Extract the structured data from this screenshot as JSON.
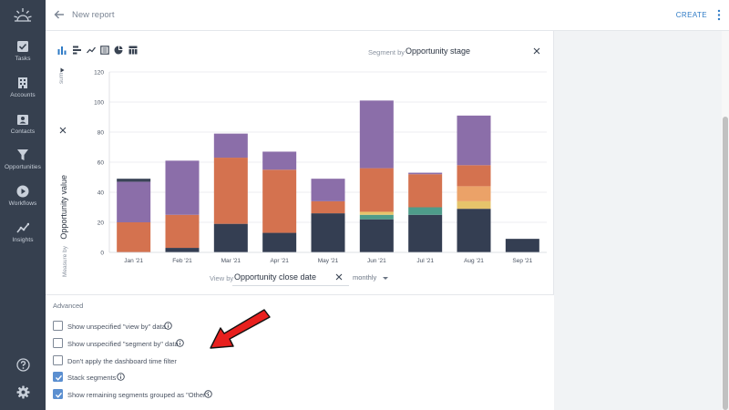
{
  "header": {
    "title": "New report",
    "create_label": "CREATE"
  },
  "sidebar": {
    "items": [
      {
        "label": "Tasks",
        "icon": "checkbox-icon"
      },
      {
        "label": "Accounts",
        "icon": "building-icon"
      },
      {
        "label": "Contacts",
        "icon": "contact-card-icon"
      },
      {
        "label": "Opportunities",
        "icon": "funnel-icon"
      },
      {
        "label": "Workflows",
        "icon": "play-circle-icon"
      },
      {
        "label": "Insights",
        "icon": "trend-line-icon"
      }
    ],
    "bottom": [
      "help-icon",
      "settings-gear-icon"
    ]
  },
  "chart_controls": {
    "segment_label": "Segment by",
    "segment_value": "Opportunity stage",
    "sum_label": "sum",
    "measure_label": "Measure by",
    "measure_value": "Opportunity value",
    "viewby_label": "View by",
    "viewby_value": "Opportunity close date",
    "interval": "monthly"
  },
  "advanced": {
    "title": "Advanced",
    "options": [
      {
        "label": "Show unspecified \"view by\" data",
        "checked": false
      },
      {
        "label": "Show unspecified \"segment by\" data",
        "checked": false
      },
      {
        "label": "Don't apply the dashboard time filter",
        "checked": false
      },
      {
        "label": "Stack segments",
        "checked": true
      },
      {
        "label": "Show remaining segments grouped as \"Other\"",
        "checked": true
      }
    ]
  },
  "colors": {
    "sidebar": "#36404f",
    "accent": "#2f7bc6",
    "checkbox_checked": "#5b8fd0",
    "annotation_arrow": "#e8201e"
  },
  "chart_data": {
    "type": "bar",
    "stacked": true,
    "categories": [
      "Jan '21",
      "Feb '21",
      "Mar '21",
      "Apr '21",
      "May '21",
      "Jun '21",
      "Jul '21",
      "Aug '21",
      "Sep '21"
    ],
    "ylim": [
      0,
      120
    ],
    "yticks": [
      0,
      20,
      40,
      60,
      80,
      100,
      120
    ],
    "grid": true,
    "series": [
      {
        "color": "#343e52",
        "values": [
          0,
          3,
          19,
          13,
          26,
          22,
          25,
          29,
          9
        ]
      },
      {
        "color": "#4e9c8a",
        "values": [
          0,
          0,
          0,
          0,
          0,
          3,
          5,
          0,
          0
        ]
      },
      {
        "color": "#e6c46b",
        "values": [
          0,
          0,
          0,
          0,
          0,
          2,
          0,
          5,
          0
        ]
      },
      {
        "color": "#eba268",
        "values": [
          0,
          0,
          0,
          0,
          0,
          0,
          0,
          10,
          0
        ]
      },
      {
        "color": "#d4724f",
        "values": [
          20,
          22,
          44,
          42,
          8,
          29,
          22,
          14,
          0
        ]
      },
      {
        "color": "#8b6ea9",
        "values": [
          27,
          36,
          16,
          12,
          15,
          45,
          1,
          33,
          0
        ]
      },
      {
        "color": "#3a4457",
        "values": [
          2,
          0,
          0,
          0,
          0,
          0,
          0,
          0,
          0
        ]
      }
    ]
  }
}
